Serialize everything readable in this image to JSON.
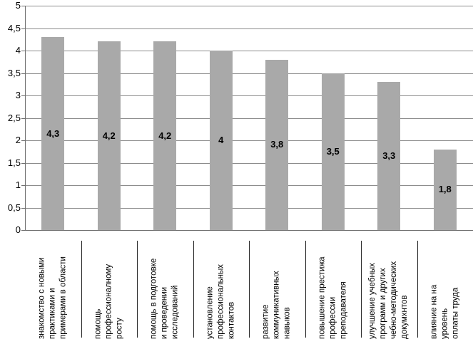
{
  "chart_data": {
    "type": "bar",
    "title": "",
    "xlabel": "",
    "ylabel": "",
    "ylim": [
      0,
      5
    ],
    "grid": true,
    "legend": false,
    "y_ticks": [
      "0",
      "0,5",
      "1",
      "1,5",
      "2",
      "2,5",
      "3",
      "3,5",
      "4",
      "4,5",
      "5"
    ],
    "categories": [
      "знакомство с новыми\nпрактиками и\nпримерами в области",
      "помощь\nпрофессионалному\nросту",
      "помощь в подготовке\nи проведении\nисследований",
      "установление\nпрофессиональных\nконтактов",
      "развитие\nкоммуникативных\nнавыков",
      "повышение престижа\nпрофессии\nпреподавателя",
      "улучшение учебных\nпрограмм и других\nчебно-методических\nдокумхнтов",
      "влияние на на\nуровень\nоплаты труда"
    ],
    "values": [
      4.3,
      4.2,
      4.2,
      4.0,
      3.8,
      3.5,
      3.3,
      1.8
    ],
    "value_labels": [
      "4,3",
      "4,2",
      "4,2",
      "4",
      "3,8",
      "3,5",
      "3,3",
      "1,8"
    ],
    "colors": {
      "bar_fill": "#a9a9a9",
      "gridline": "#8c8c8c",
      "axis": "#6e6e6e",
      "category_separator": "#262626",
      "text": "#000000",
      "background": "#ffffff"
    }
  }
}
